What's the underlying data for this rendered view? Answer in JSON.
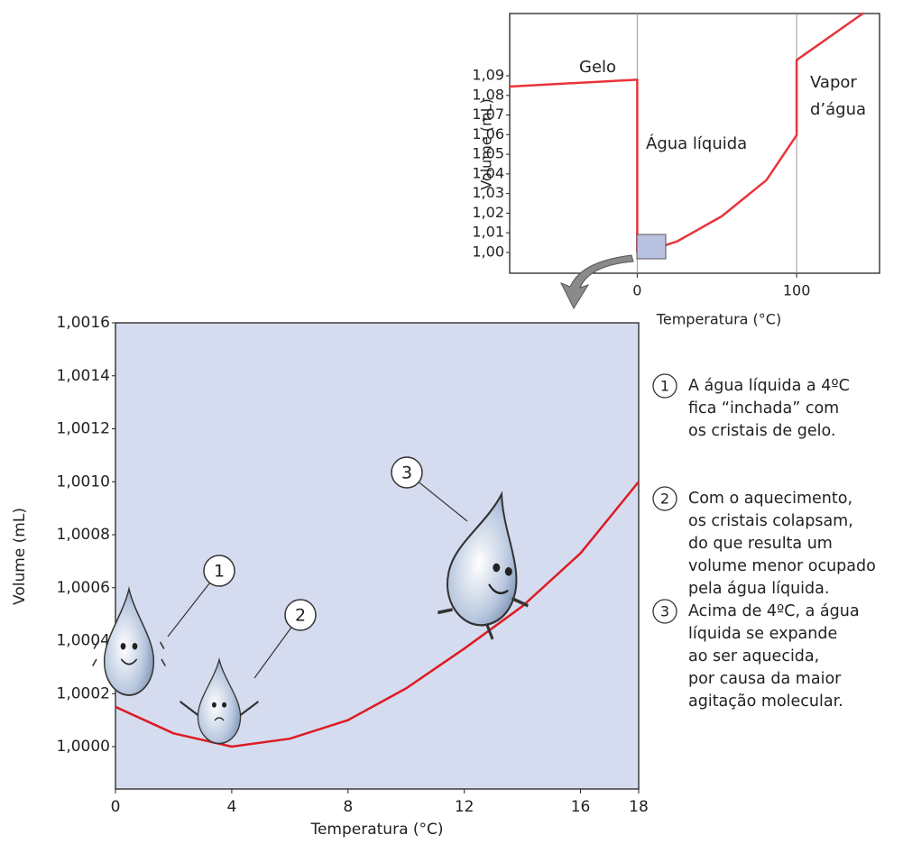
{
  "chart_data": [
    {
      "type": "line",
      "x_label": "Temperatura (°C)",
      "y_label": "Volume (mL)",
      "x": [
        -80,
        0,
        0,
        4,
        25,
        53,
        81,
        100,
        100,
        142
      ],
      "values": [
        1.0845,
        1.088,
        1.0002,
        1.0,
        1.0056,
        1.0184,
        1.0368,
        1.0597,
        1.098,
        1.122
      ],
      "color": "#e8343a",
      "xlim": [
        -80,
        152
      ],
      "ylim": [
        0.9894,
        1.1217
      ],
      "xticks": [
        0,
        100
      ],
      "xgrid": true,
      "yticks": [
        {
          "value": 1.0,
          "label": "1,00"
        },
        {
          "value": 1.01,
          "label": "1,01"
        },
        {
          "value": 1.02,
          "label": "1,02"
        },
        {
          "value": 1.03,
          "label": "1,03"
        },
        {
          "value": 1.04,
          "label": "1,04"
        },
        {
          "value": 1.05,
          "label": "1,05"
        },
        {
          "value": 1.06,
          "label": "1,06"
        },
        {
          "value": 1.07,
          "label": "1,07"
        },
        {
          "value": 1.08,
          "label": "1,08"
        },
        {
          "value": 1.09,
          "label": "1,09"
        }
      ],
      "annotations": [
        "Gelo",
        "Água líquida",
        "Vapor",
        "d’água"
      ]
    },
    {
      "type": "line",
      "x_label": "Temperatura (°C)",
      "y_label": "Volume (mL)",
      "x": [
        0,
        2,
        4,
        6,
        8,
        10,
        12,
        14,
        16,
        18
      ],
      "values": [
        1.00015,
        1.00005,
        1.0,
        1.00003,
        1.0001,
        1.00022,
        1.00037,
        1.00053,
        1.00073,
        1.001
      ],
      "color": "#dc1c24",
      "background": "#d6dcef",
      "xlim": [
        0,
        18
      ],
      "ylim": [
        0.99984,
        1.0016
      ],
      "xticks": [
        0,
        4,
        8,
        12,
        16,
        18
      ],
      "xgrid": false,
      "yticks": [
        {
          "value": 1.0,
          "label": "1,0000"
        },
        {
          "value": 1.0002,
          "label": "1,0002"
        },
        {
          "value": 1.0004,
          "label": "1,0004"
        },
        {
          "value": 1.0006,
          "label": "1,0006"
        },
        {
          "value": 1.0008,
          "label": "1,0008"
        },
        {
          "value": 1.001,
          "label": "1,0010"
        },
        {
          "value": 1.0012,
          "label": "1,0012"
        },
        {
          "value": 1.0014,
          "label": "1,0014"
        },
        {
          "value": 1.0016,
          "label": "1,0016"
        }
      ]
    }
  ],
  "notes": [
    {
      "number": "1",
      "lines": [
        "A água líquida a 4ºC",
        "fica “inchada” com",
        "os cristais de gelo."
      ]
    },
    {
      "number": "2",
      "lines": [
        "Com o aquecimento,",
        "os cristais colapsam,",
        "do que resulta um",
        "volume menor ocupado",
        "pela água líquida."
      ]
    },
    {
      "number": "3",
      "lines": [
        "Acima de 4ºC, a água",
        "líquida se expande",
        "ao ser aquecida,",
        "por causa da maior",
        "agitação molecular."
      ]
    }
  ]
}
